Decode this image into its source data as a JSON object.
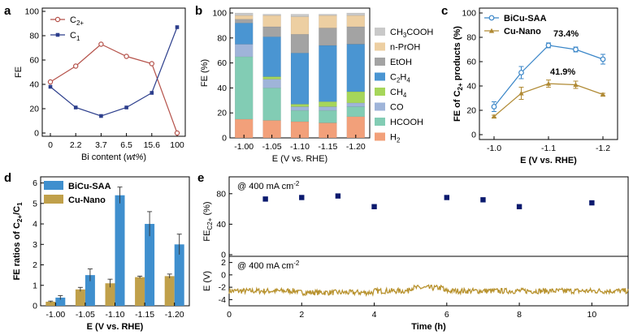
{
  "colors": {
    "a_c2": "#b5524a",
    "a_c1": "#2c3e8c",
    "c_bicu": "#3a86c8",
    "c_cunano": "#b08a34",
    "d_bicu": "#3f8fce",
    "d_cunano": "#c0a04a",
    "e_sq": "#0b1a6e",
    "e_line": "#b8922e",
    "bar_h2": "#f2a07a",
    "bar_hcooh": "#82ccb4",
    "bar_co": "#9fb4d9",
    "bar_ch4": "#a6d65a",
    "bar_c2h4": "#4a95d2",
    "bar_etoh": "#a3a3a3",
    "bar_nproh": "#edcfa2",
    "bar_ch3cooh": "#c9c9c9"
  },
  "panel_labels": {
    "a": "a",
    "b": "b",
    "c": "c",
    "d": "d",
    "e": "e"
  },
  "chart_data": [
    {
      "id": "a",
      "type": "line",
      "xlabel_prefix": "Bi content (",
      "xlabel_italic": "wt%",
      "xlabel_suffix": ")",
      "ylabel": "FE",
      "categories": [
        "0",
        "2.2",
        "3.7",
        "6.5",
        "15.6",
        "100"
      ],
      "ylim": [
        0,
        100
      ],
      "yticks": [
        0,
        20,
        40,
        60,
        80,
        100
      ],
      "series": [
        {
          "name": "C",
          "sub": "2+",
          "color_key": "a_c2",
          "values": [
            42,
            55,
            73,
            63,
            57,
            0
          ]
        },
        {
          "name": "C",
          "sub": "1",
          "color_key": "a_c1",
          "values": [
            38,
            21,
            14,
            21,
            33,
            87
          ]
        }
      ]
    },
    {
      "id": "b",
      "type": "bar",
      "stacked": true,
      "xlabel": "E (V vs. RHE)",
      "ylabel": "FE (%)",
      "categories": [
        "-1.00",
        "-1.05",
        "-1.10",
        "-1.15",
        "-1.20"
      ],
      "ylim": [
        0,
        100
      ],
      "yticks": [
        0,
        20,
        40,
        60,
        80,
        100
      ],
      "series": [
        {
          "name": "H",
          "sub": "2",
          "color_key": "bar_h2",
          "values": [
            15,
            14,
            13,
            12,
            17
          ]
        },
        {
          "name": "HCOOH",
          "sub": "",
          "color_key": "bar_hcooh",
          "values": [
            50,
            26,
            9,
            10,
            8
          ]
        },
        {
          "name": "CO",
          "sub": "",
          "color_key": "bar_co",
          "values": [
            10,
            7,
            3,
            3,
            3
          ]
        },
        {
          "name": "CH",
          "sub": "4",
          "color_key": "bar_ch4",
          "values": [
            0,
            2,
            2,
            4,
            9
          ]
        },
        {
          "name": "C",
          "sub": "2",
          "tail": "H",
          "tail_sub": "4",
          "color_key": "bar_c2h4",
          "values": [
            17,
            32,
            41,
            45,
            38
          ]
        },
        {
          "name": "EtOH",
          "sub": "",
          "color_key": "bar_etoh",
          "values": [
            3,
            8,
            15,
            14,
            14
          ]
        },
        {
          "name": "n-PrOH",
          "sub": "",
          "color_key": "bar_nproh",
          "values": [
            3,
            9,
            14,
            10,
            9
          ]
        },
        {
          "name": "CH",
          "sub": "3",
          "tail": "COOH",
          "tail_sub": "",
          "color_key": "bar_ch3cooh",
          "values": [
            2,
            1,
            2,
            1,
            2
          ]
        }
      ]
    },
    {
      "id": "c",
      "type": "line",
      "xlabel": "E (V vs. RHE)",
      "ylabel_prefix": "FE of C",
      "ylabel_sub": "2+",
      "ylabel_suffix": " products (%)",
      "x": [
        -1.0,
        -1.05,
        -1.1,
        -1.15,
        -1.2
      ],
      "xticks": [
        "-1.0",
        "-1.1",
        "-1.2"
      ],
      "xtick_values": [
        -1.0,
        -1.1,
        -1.2
      ],
      "ylim": [
        0,
        100
      ],
      "yticks": [
        0,
        20,
        40,
        60,
        80,
        100
      ],
      "annotations": [
        "73.4%",
        "41.9%"
      ],
      "series": [
        {
          "name": "BiCu-SAA",
          "color_key": "c_bicu",
          "marker": "circle",
          "values": [
            23,
            51,
            73.4,
            70,
            62
          ],
          "errors": [
            4,
            5,
            2,
            2,
            4
          ]
        },
        {
          "name": "Cu-Nano",
          "color_key": "c_cunano",
          "marker": "triangle",
          "values": [
            15,
            34,
            41.9,
            41,
            33
          ],
          "errors": [
            1,
            5,
            3,
            3,
            1
          ]
        }
      ]
    },
    {
      "id": "d",
      "type": "bar",
      "xlabel": "E (V vs. RHE)",
      "ylabel_prefix": "FE ratios of C",
      "ylabel_sub1": "2+",
      "ylabel_mid": "/C",
      "ylabel_sub2": "1",
      "categories": [
        "-1.00",
        "-1.05",
        "-1.10",
        "-1.15",
        "-1.20"
      ],
      "ylim": [
        0,
        6.3
      ],
      "yticks": [
        0,
        1,
        2,
        3,
        4,
        5,
        6
      ],
      "series": [
        {
          "name": "Cu-Nano",
          "color_key": "d_cunano",
          "values": [
            0.2,
            0.8,
            1.1,
            1.4,
            1.45
          ],
          "errors": [
            0.03,
            0.1,
            0.2,
            0.05,
            0.1
          ]
        },
        {
          "name": "BiCu-SAA",
          "color_key": "d_bicu",
          "values": [
            0.4,
            1.5,
            5.4,
            4.0,
            3.0
          ],
          "errors": [
            0.1,
            0.3,
            0.4,
            0.6,
            0.5
          ]
        }
      ]
    },
    {
      "id": "e",
      "type": "scatter",
      "xlabel": "Time (h)",
      "xlim": [
        0,
        11
      ],
      "xticks": [
        0,
        2,
        4,
        6,
        8,
        10
      ],
      "top": {
        "annotation_prefix": "@ 400 mA cm",
        "annotation_sup": "-2",
        "ylabel_prefix": "FE",
        "ylabel_sub": "C2+",
        "ylabel_suffix": " (%)",
        "ylim": [
          0,
          100
        ],
        "yticks": [
          0,
          40,
          80
        ],
        "x": [
          1,
          2,
          3,
          4,
          6,
          7,
          8,
          10
        ],
        "y": [
          73,
          75,
          77,
          63,
          75,
          72,
          63,
          68
        ]
      },
      "bottom": {
        "annotation_prefix": "@ 400 mA cm",
        "annotation_sup": "-2",
        "ylabel": "E (V)",
        "ylim": [
          -5,
          3
        ],
        "yticks": [
          -4,
          -2,
          0,
          2
        ],
        "baseline": -2.6
      }
    }
  ]
}
